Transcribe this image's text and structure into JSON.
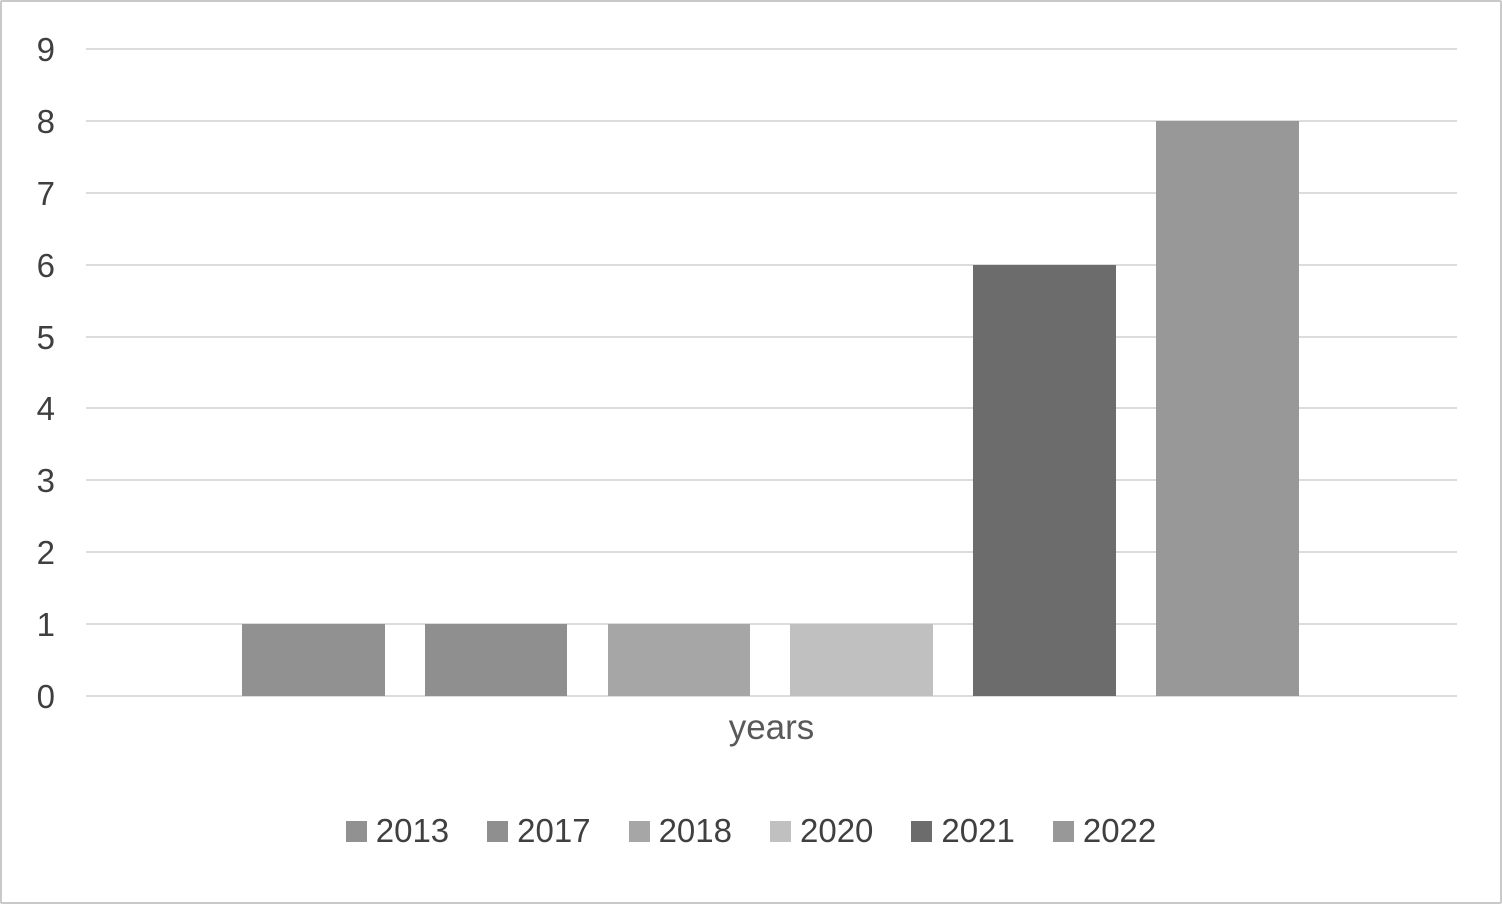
{
  "chart_data": {
    "type": "bar",
    "title": "",
    "xlabel": "years",
    "ylabel": "",
    "categories": [
      "2013",
      "2017",
      "2018",
      "2020",
      "2021",
      "2022"
    ],
    "values": [
      1,
      1,
      1,
      1,
      6,
      8
    ],
    "series_colors": [
      "#919191",
      "#8f8f8f",
      "#a6a6a6",
      "#c0c0c0",
      "#6c6c6c",
      "#989898"
    ],
    "ylim": [
      0,
      9
    ],
    "yticks": [
      0,
      1,
      2,
      3,
      4,
      5,
      6,
      7,
      8,
      9
    ],
    "grid": true,
    "legend_position": "bottom",
    "legend_entries": [
      "2013",
      "2017",
      "2018",
      "2020",
      "2021",
      "2022"
    ],
    "colors": {
      "gridline": "#dcdcdc",
      "tick_label": "#3f3f3f",
      "axis_title": "#595959",
      "legend_text": "#404040",
      "figure_border": "#c9c9c9",
      "background": "#ffffff"
    }
  }
}
